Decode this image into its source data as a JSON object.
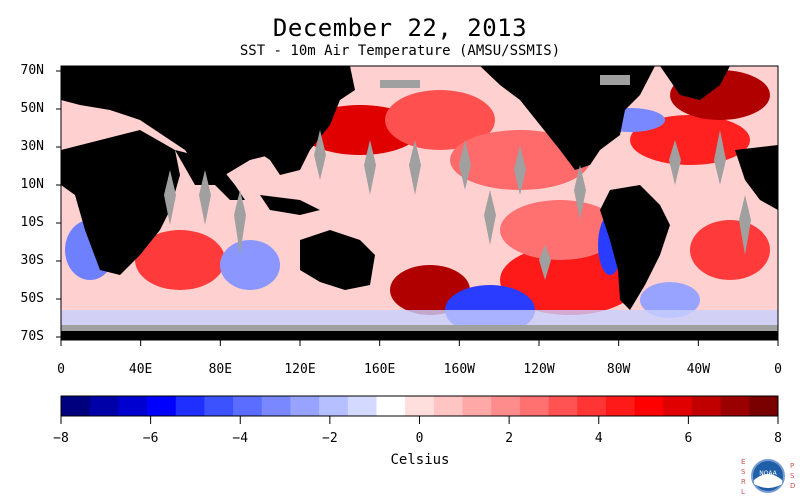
{
  "header": {
    "title": "December 22, 2013",
    "subtitle": "SST - 10m Air Temperature (AMSU/SSMIS)"
  },
  "map": {
    "lat_labels": [
      "70N",
      "50N",
      "30N",
      "10N",
      "10S",
      "30S",
      "50S",
      "70S"
    ],
    "lon_labels": [
      "0",
      "40E",
      "80E",
      "120E",
      "160E",
      "160W",
      "120W",
      "80W",
      "40W",
      "0"
    ],
    "land_color": "#000000",
    "no_data_color": "#a0a0a0"
  },
  "colorbar": {
    "label": "Celsius",
    "tick_labels": [
      "-8",
      "-6",
      "-4",
      "-2",
      "0",
      "2",
      "4",
      "6",
      "8"
    ],
    "min": -8,
    "max": 8,
    "colors": [
      "#00007f",
      "#0000a8",
      "#0000d0",
      "#0000ff",
      "#1f2fff",
      "#3d52ff",
      "#5b6dff",
      "#7a88ff",
      "#98a3ff",
      "#b6bfff",
      "#d3d9ff",
      "#ffffff",
      "#ffdede",
      "#ffc4c4",
      "#ffa8a8",
      "#ff8c8c",
      "#ff7070",
      "#ff5252",
      "#ff3535",
      "#ff1a1a",
      "#ff0000",
      "#e00000",
      "#c00000",
      "#9a0000",
      "#7a0000"
    ]
  },
  "logo": {
    "left_text": "ESRL",
    "right_text": "PSD",
    "seal_text": "NOAA"
  }
}
